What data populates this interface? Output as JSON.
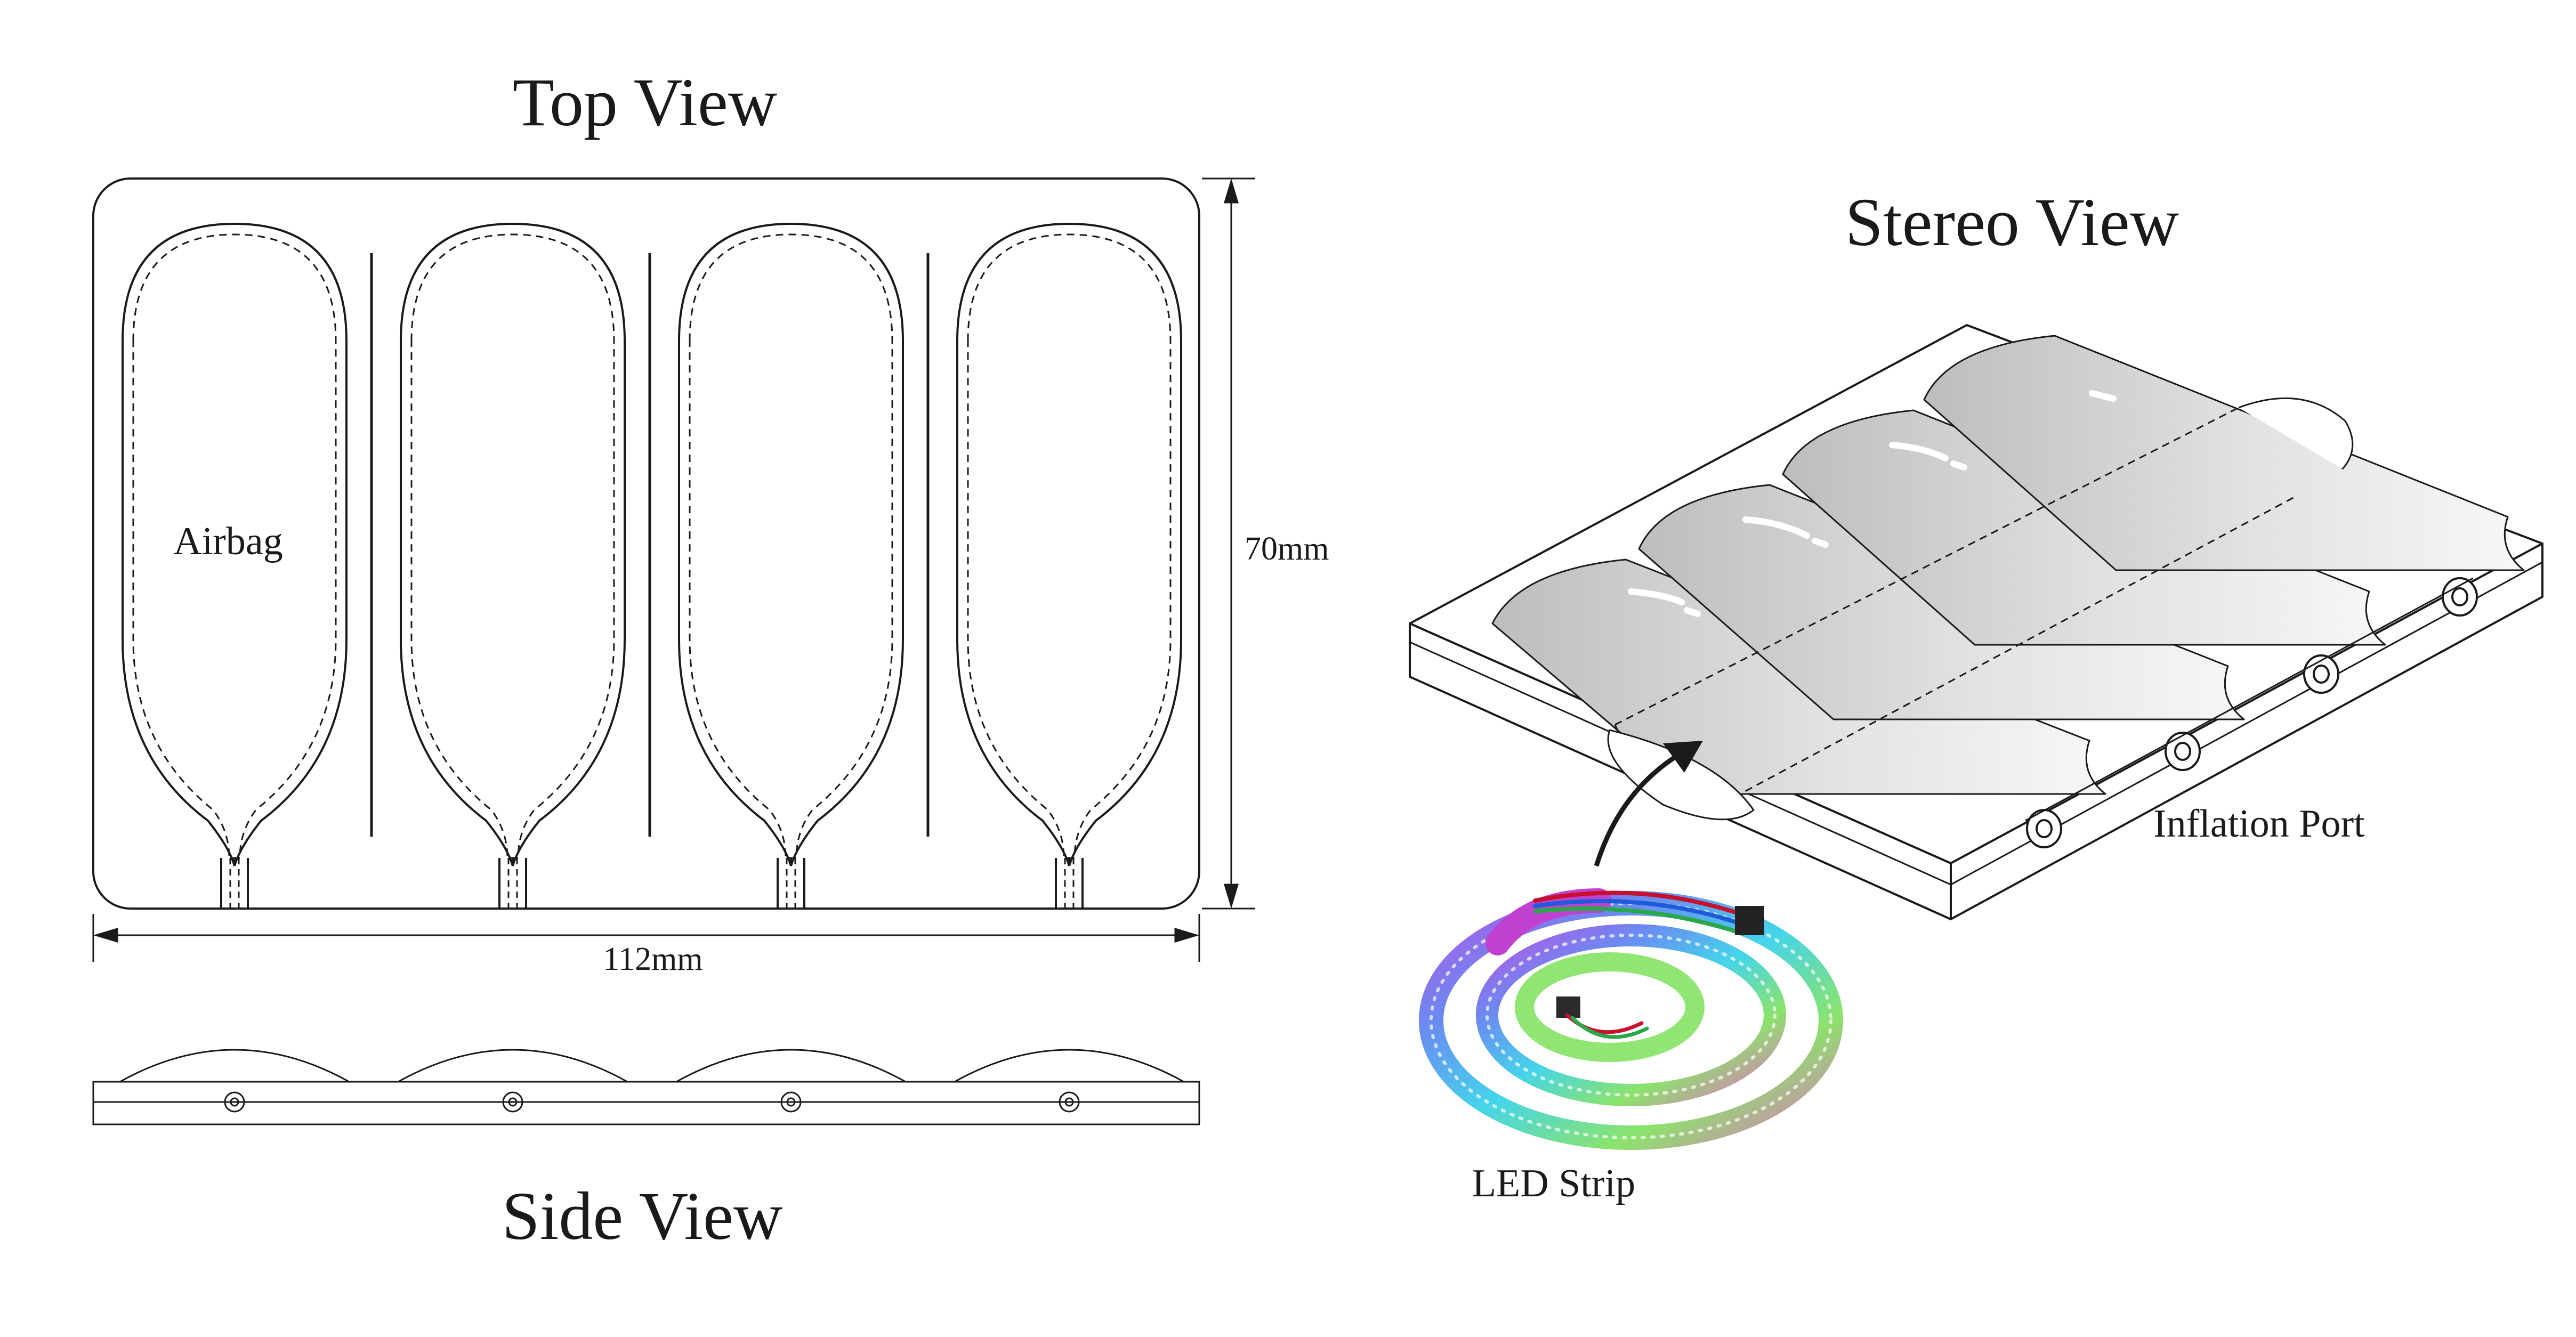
{
  "top_view": {
    "title": "Top View",
    "airbag_label": "Airbag",
    "width_label": "112mm",
    "height_label": "70mm",
    "airbag_count": 4
  },
  "side_view": {
    "title": "Side View"
  },
  "stereo_view": {
    "title": "Stereo View",
    "inflation_port_label": "Inflation Port",
    "led_strip_label": "LED Strip"
  },
  "colors": {
    "line": "#1a1a1a",
    "airbag_fill_light": "#f4f4f4",
    "airbag_fill_dark": "#c9c9c9",
    "led_magenta": "#c040d0",
    "led_cyan": "#30d0e8",
    "led_green": "#7ee05a",
    "led_blue": "#5b7cf0"
  }
}
